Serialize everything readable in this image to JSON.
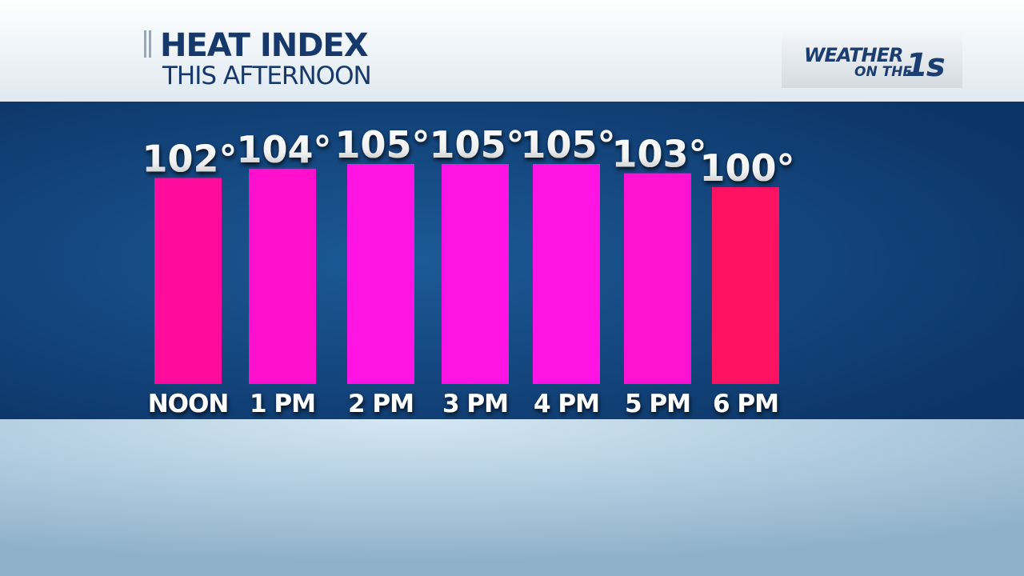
{
  "chart_data": {
    "type": "bar",
    "title": "HEAT INDEX",
    "subtitle": "THIS AFTERNOON",
    "categories": [
      "NOON",
      "1 PM",
      "2 PM",
      "3 PM",
      "4 PM",
      "5 PM",
      "6 PM"
    ],
    "values": [
      102,
      104,
      105,
      105,
      105,
      103,
      100
    ],
    "value_labels": [
      "102°",
      "104°",
      "105°",
      "105°",
      "105°",
      "103°",
      "100°"
    ],
    "colors": [
      "#ff0c9c",
      "#ff10cc",
      "#ff14e4",
      "#ff14e4",
      "#ff14e4",
      "#ff12d2",
      "#ff1262"
    ]
  },
  "logo": {
    "word": "WEATHER",
    "sub": "ON THE",
    "mark": "1s"
  }
}
